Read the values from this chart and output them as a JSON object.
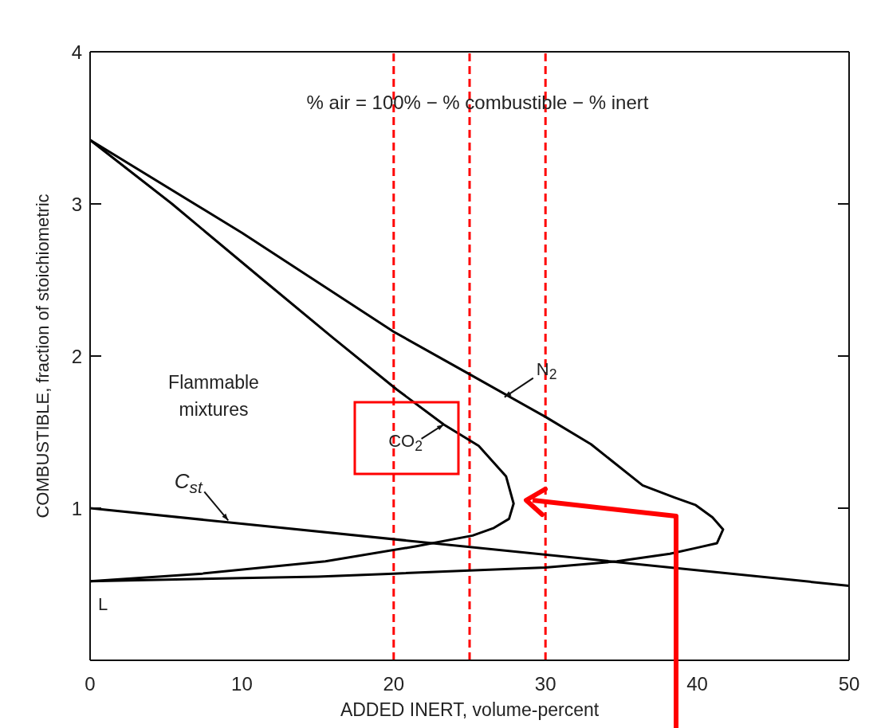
{
  "chart_data": {
    "type": "line",
    "xlabel": "ADDED INERT, volume-percent",
    "ylabel": "COMBUSTIBLE, fraction of stoichiometric",
    "xlim": [
      0,
      50
    ],
    "xticks": [
      0,
      10,
      20,
      30,
      40,
      50
    ],
    "ylim": [
      0,
      4
    ],
    "yticks": [
      {
        "value": 0,
        "label": null
      },
      1,
      2,
      3,
      4
    ],
    "marker": "none",
    "line_style": "solid",
    "series": [
      {
        "color": "#000000",
        "x": [
          0,
          10,
          20,
          25,
          30,
          33,
          36.4,
          38.5,
          39.9,
          41,
          41.7,
          41.3,
          40,
          38.2,
          34.7,
          30,
          25,
          20,
          15,
          10,
          5,
          0
        ],
        "values": [
          3.42,
          2.81,
          2.16,
          1.88,
          1.6,
          1.42,
          1.15,
          1.07,
          1.02,
          0.94,
          0.86,
          0.77,
          0.74,
          0.7,
          0.65,
          0.61,
          0.59,
          0.57,
          0.55,
          0.54,
          0.53,
          0.52
        ]
      },
      {
        "color": "#000000",
        "x": [
          0,
          5.4,
          11.4,
          16,
          20.2,
          23.3,
          25.6,
          27.4,
          27.9,
          27.6,
          26.6,
          25.2,
          21.5,
          15.5,
          7.4,
          0
        ],
        "values": [
          3.42,
          3.0,
          2.5,
          2.12,
          1.78,
          1.55,
          1.41,
          1.21,
          1.03,
          0.93,
          0.87,
          0.82,
          0.75,
          0.65,
          0.57,
          0.52
        ]
      },
      {
        "color": "#000000",
        "x": [
          0,
          50
        ],
        "values": [
          1.0,
          0.49
        ]
      }
    ],
    "ref_lines": [
      {
        "axis": "x",
        "value": 20,
        "color": "#ff0000",
        "line_style": "dashed"
      },
      {
        "axis": "x",
        "value": 25,
        "color": "#ff0000",
        "line_style": "dashed"
      },
      {
        "axis": "x",
        "value": 30,
        "color": "#ff0000",
        "line_style": "dashed"
      }
    ],
    "annotations": [
      "% air = 100% − % combustible − % inert",
      "Flammable mixtures",
      {
        "text": "N$_{2}$",
        "x": 27.3,
        "y": 1.73
      },
      {
        "text": "CO$_{2}$",
        "x": 23.3,
        "y": 1.55
      },
      {
        "text": "C$_{st}$",
        "x": 9.1,
        "y": 0.92
      },
      {
        "text": "L",
        "x": 0,
        "y": 0.52
      }
    ]
  }
}
